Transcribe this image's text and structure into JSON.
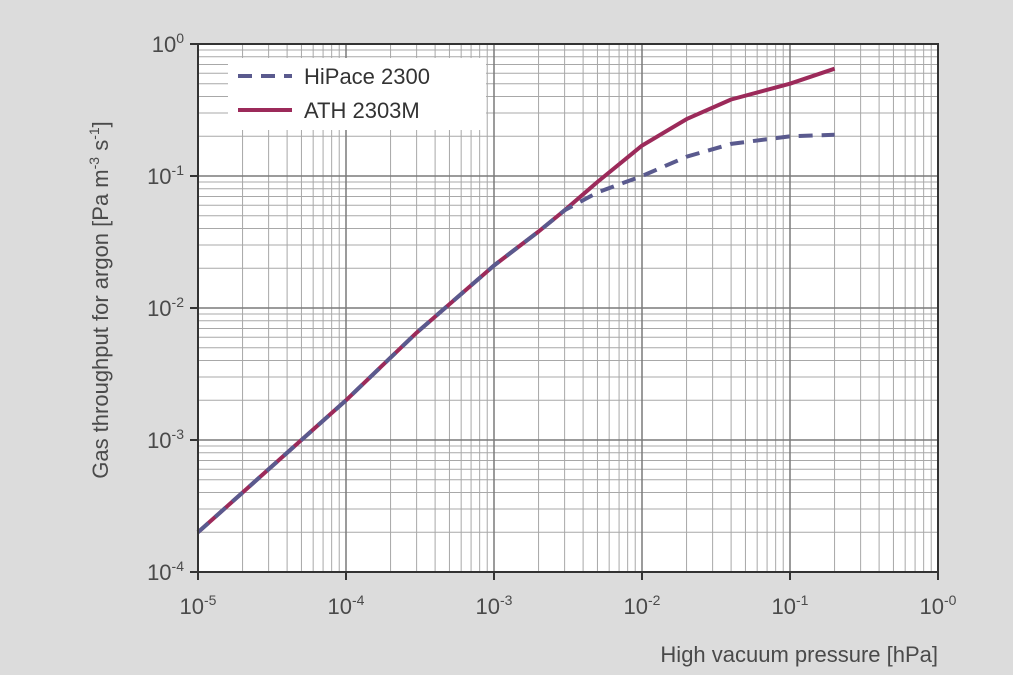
{
  "chart_data": {
    "type": "line",
    "xlabel": "High vacuum pressure [hPa]",
    "ylabel_main": "Gas throughput for argon [Pa m",
    "ylabel_exp1": "-3",
    "ylabel_mid": " s",
    "ylabel_exp2": "-1",
    "ylabel_end": "]",
    "x_scale": "log",
    "y_scale": "log",
    "xlim": [
      1e-05,
      1
    ],
    "ylim": [
      0.0001,
      1
    ],
    "grid": true,
    "legend_position": "top-left",
    "x_ticks": [
      {
        "value": 1e-05,
        "base": "10",
        "exp": "-5"
      },
      {
        "value": 0.0001,
        "base": "10",
        "exp": "-4"
      },
      {
        "value": 0.001,
        "base": "10",
        "exp": "-3"
      },
      {
        "value": 0.01,
        "base": "10",
        "exp": "-2"
      },
      {
        "value": 0.1,
        "base": "10",
        "exp": "-1"
      },
      {
        "value": 1,
        "base": "10",
        "exp": "-0"
      }
    ],
    "y_ticks": [
      {
        "value": 0.0001,
        "base": "10",
        "exp": "-4"
      },
      {
        "value": 0.001,
        "base": "10",
        "exp": "-3"
      },
      {
        "value": 0.01,
        "base": "10",
        "exp": "-2"
      },
      {
        "value": 0.1,
        "base": "10",
        "exp": "-1"
      },
      {
        "value": 1,
        "base": "10",
        "exp": "0"
      }
    ],
    "series": [
      {
        "name": "HiPace 2300",
        "color": "#5a5a8e",
        "style": "dashed",
        "points": [
          [
            1e-05,
            0.0002
          ],
          [
            3e-05,
            0.0006
          ],
          [
            0.0001,
            0.002
          ],
          [
            0.0003,
            0.0065
          ],
          [
            0.001,
            0.021
          ],
          [
            0.002,
            0.038
          ],
          [
            0.003,
            0.055
          ],
          [
            0.005,
            0.075
          ],
          [
            0.01,
            0.1
          ],
          [
            0.02,
            0.14
          ],
          [
            0.04,
            0.175
          ],
          [
            0.07,
            0.19
          ],
          [
            0.1,
            0.2
          ],
          [
            0.2,
            0.205
          ]
        ]
      },
      {
        "name": "ATH 2303M",
        "color": "#9c2a5a",
        "style": "solid",
        "points": [
          [
            1e-05,
            0.0002
          ],
          [
            3e-05,
            0.0006
          ],
          [
            0.0001,
            0.002
          ],
          [
            0.0003,
            0.0065
          ],
          [
            0.001,
            0.021
          ],
          [
            0.002,
            0.038
          ],
          [
            0.003,
            0.055
          ],
          [
            0.005,
            0.09
          ],
          [
            0.01,
            0.17
          ],
          [
            0.02,
            0.27
          ],
          [
            0.04,
            0.38
          ],
          [
            0.07,
            0.45
          ],
          [
            0.1,
            0.5
          ],
          [
            0.2,
            0.65
          ]
        ]
      }
    ]
  }
}
